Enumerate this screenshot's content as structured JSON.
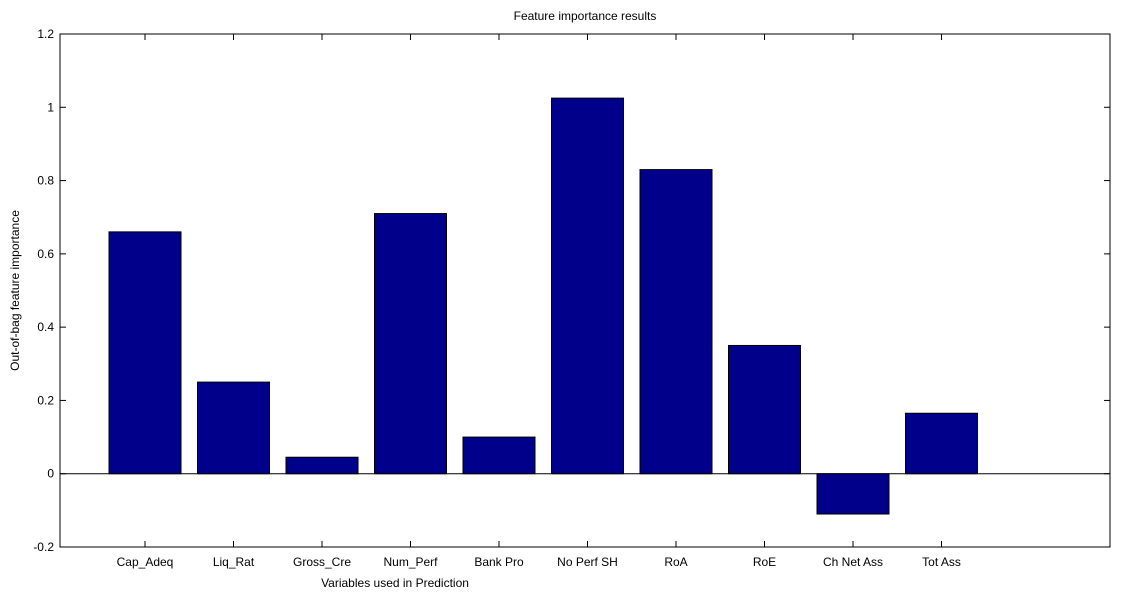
{
  "chart_data": {
    "type": "bar",
    "title": "Feature importance results",
    "xlabel": "Variables used in Prediction",
    "ylabel": "Out-of-bag feature importance",
    "categories": [
      "Cap_Adeq",
      "Liq_Rat",
      "Gross_Cre",
      "Num_Perf",
      "Bank Pro",
      "No Perf SH",
      "RoA",
      "RoE",
      "Ch Net Ass",
      "Tot Ass"
    ],
    "values": [
      0.66,
      0.25,
      0.045,
      0.71,
      0.1,
      1.025,
      0.83,
      0.35,
      -0.11,
      0.165
    ],
    "ylim": [
      -0.2,
      1.2
    ],
    "yticks": [
      -0.2,
      0,
      0.2,
      0.4,
      0.6,
      0.8,
      1,
      1.2
    ],
    "ytick_labels": [
      "-0.2",
      "0",
      "0.2",
      "0.4",
      "0.6",
      "0.8",
      "1",
      "1.2"
    ],
    "grid": false,
    "bar_color": "#00008B",
    "axis_color": "#000000"
  }
}
